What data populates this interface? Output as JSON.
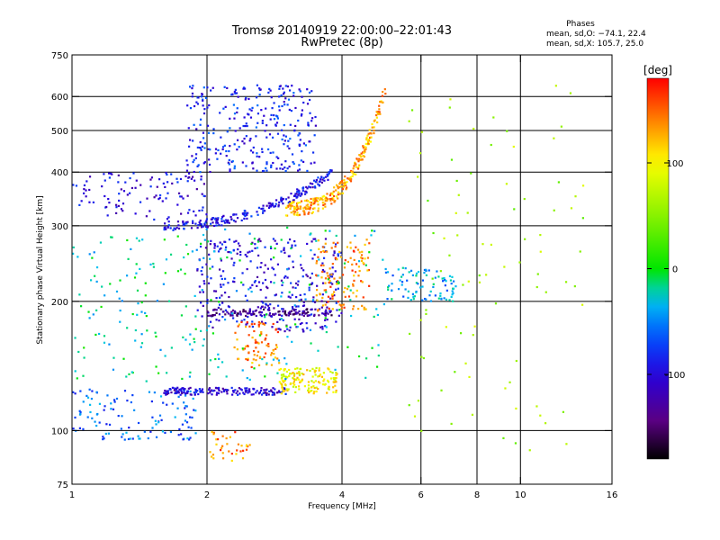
{
  "chart_data": {
    "type": "scatter",
    "title": "Tromsø 20140919 22:00:00–22:01:43",
    "subtitle": "RwPretec (8p)",
    "xlabel": "Frequency [MHz]",
    "ylabel": "Stationary phase Virtual Height [km]",
    "x_scale": "log",
    "y_scale": "log",
    "xlim": [
      1,
      16
    ],
    "ylim": [
      75,
      750
    ],
    "x_ticks": [
      1,
      2,
      4,
      6,
      8,
      10,
      16
    ],
    "y_ticks": [
      75,
      100,
      200,
      300,
      400,
      500,
      600,
      750
    ],
    "x_grid": [
      2,
      4,
      6,
      8,
      10
    ],
    "y_grid": [
      100,
      200,
      300,
      400,
      500,
      600
    ],
    "grid": true,
    "phases_box": {
      "title": "Phases",
      "line_o": "mean, sd,O: −74.1, 22.4",
      "line_x": "mean, sd,X: 105.7, 25.0"
    },
    "colorbar": {
      "label": "[deg]",
      "range": [
        -180,
        180
      ],
      "ticks": [
        100,
        0,
        -100
      ],
      "colormap": "rainbow"
    },
    "clusters": [
      {
        "name": "F-trace blue",
        "x_from": 1.6,
        "x_to": 3.8,
        "y_from": 300,
        "y_to": 400,
        "phase": -95,
        "n": 220
      },
      {
        "name": "F-trace orange",
        "x_from": 3.0,
        "x_to": 5.0,
        "y_from": 320,
        "y_to": 650,
        "phase": 130,
        "n": 260
      },
      {
        "name": "F scatter blue",
        "x_from": 1.8,
        "x_to": 3.5,
        "y_from": 400,
        "y_to": 640,
        "phase": -85,
        "n": 300
      },
      {
        "name": "low F blue",
        "x_from": 1.0,
        "x_to": 2.0,
        "y_from": 310,
        "y_to": 400,
        "phase": -100,
        "n": 110
      },
      {
        "name": "E/F1 blue band",
        "x_from": 1.9,
        "x_to": 4.0,
        "y_from": 170,
        "y_to": 280,
        "phase": -100,
        "n": 330
      },
      {
        "name": "dark blue 190 band",
        "x_from": 2.0,
        "x_to": 3.8,
        "y_from": 185,
        "y_to": 192,
        "phase": -135,
        "n": 120
      },
      {
        "name": "orange 200 cluster",
        "x_from": 3.5,
        "x_to": 4.6,
        "y_from": 190,
        "y_to": 280,
        "phase": 140,
        "n": 130
      },
      {
        "name": "cyan 215 mid",
        "x_from": 5.0,
        "x_to": 7.2,
        "y_from": 200,
        "y_to": 240,
        "phase": -40,
        "n": 90
      },
      {
        "name": "E blue band 123",
        "x_from": 1.6,
        "x_to": 3.0,
        "y_from": 121,
        "y_to": 126,
        "phase": -105,
        "n": 160
      },
      {
        "name": "E yellow 130",
        "x_from": 2.9,
        "x_to": 3.9,
        "y_from": 122,
        "y_to": 140,
        "phase": 100,
        "n": 150
      },
      {
        "name": "E orange 160",
        "x_from": 2.3,
        "x_to": 2.9,
        "y_from": 140,
        "y_to": 180,
        "phase": 140,
        "n": 80
      },
      {
        "name": "low cyan 100-120",
        "x_from": 1.0,
        "x_to": 1.9,
        "y_from": 95,
        "y_to": 125,
        "phase": -60,
        "n": 120
      },
      {
        "name": "orange 85-95",
        "x_from": 2.0,
        "x_to": 2.5,
        "y_from": 85,
        "y_to": 100,
        "phase": 140,
        "n": 35
      },
      {
        "name": "sparse high freq",
        "x_from": 5.5,
        "x_to": 14.0,
        "y_from": 90,
        "y_to": 650,
        "phase": 60,
        "n": 90
      },
      {
        "name": "background",
        "x_from": 1.0,
        "x_to": 5.0,
        "y_from": 130,
        "y_to": 300,
        "phase": -20,
        "n": 250
      }
    ]
  }
}
